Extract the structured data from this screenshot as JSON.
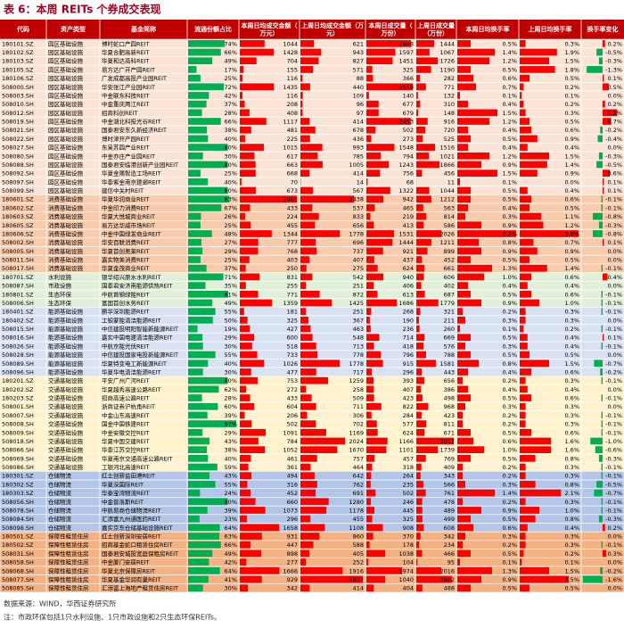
{
  "title": "表 6：本周 REITs 个券成交表现",
  "table": {
    "header_color": "#c00000",
    "bar_color": "#ff0000",
    "share_color": "#00b050",
    "neg_color": "#00b050",
    "header": [
      "代码",
      "资产类型",
      "基金简称",
      "流通份额占比",
      "本周日均成交金额（万元）",
      "上周日均成交金额（万元）",
      "本周日成交量（万份）",
      "上周日成交量（万份）",
      "本周日均换手率",
      "上周日均换手率",
      "换手率变化"
    ],
    "sections": [
      {
        "color": "#fbe4d5",
        "rows": [
          [
            "180101.SZ",
            "园区基础设施",
            "博时蛇口产园REIT",
            "74%",
            "1044",
            "621",
            "2468",
            "1444",
            "0.5%",
            "0.3%",
            "0.2%"
          ],
          [
            "180102.SZ",
            "园区基础设施",
            "华夏合肥高新REIT",
            "66%",
            "1428",
            "943",
            "1597",
            "1067",
            "1.4%",
            "1.9%",
            "-0.5%"
          ],
          [
            "180103.SZ",
            "园区基础设施",
            "华夏和达高科REIT",
            "49%",
            "704",
            "827",
            "1451",
            "1726",
            "1.2%",
            "1.5%",
            "-0.3%"
          ],
          [
            "180105.SZ",
            "园区基础设施",
            "易方达广开产园REIT",
            "17%",
            "155",
            "571",
            "325",
            "1190",
            "0.5%",
            "1.8%",
            "-1.3%"
          ],
          [
            "180106.SZ",
            "园区基础设施",
            "广发成都高投产业园REIT",
            "25%",
            "116",
            "88",
            "366",
            "282",
            "0.6%",
            "0.5%",
            "0.1%"
          ],
          [
            "508000.SH",
            "园区基础设施",
            "华安张江产业园REIT",
            "72%",
            "1435",
            "440",
            "2559",
            "771",
            "0.7%",
            "0.2%",
            "0.5%"
          ],
          [
            "508003.SH",
            "园区基础设施",
            "中金联东科技REIT",
            "42%",
            "116",
            "109",
            "140",
            "132",
            "0.1%",
            "0.1%",
            "0.0%"
          ],
          [
            "508010.SH",
            "园区基础设施",
            "中金重庆两江REIT",
            "37%",
            "208",
            "96",
            "677",
            "310",
            "0.4%",
            "0.2%",
            "0.2%"
          ],
          [
            "508012.SH",
            "园区基础设施",
            "招商科创REIT",
            "28%",
            "408",
            "97",
            "679",
            "148",
            "1.5%",
            "0.3%",
            "1.2%"
          ],
          [
            "508019.SH",
            "园区基础设施",
            "中金湖北科投光谷REIT",
            "66%",
            "1117",
            "414",
            "2453",
            "916",
            "1.2%",
            "0.5%",
            "0.7%"
          ],
          [
            "508021.SH",
            "园区基础设施",
            "国泰君安东久新经济REIT",
            "38%",
            "481",
            "678",
            "502",
            "720",
            "0.4%",
            "0.6%",
            "-0.2%"
          ],
          [
            "508022.SH",
            "园区基础设施",
            "博时津开产园REIT",
            "40%",
            "225",
            "436",
            "273",
            "525",
            "0.5%",
            "0.9%",
            "-0.4%"
          ],
          [
            "508027.SH",
            "园区基础设施",
            "东吴苏园产业REIT",
            "80%",
            "1015",
            "993",
            "1548",
            "1516",
            "0.4%",
            "0.4%",
            "0.0%"
          ],
          [
            "508080.SH",
            "园区基础设施",
            "中金亦庄产业园REIT",
            "30%",
            "617",
            "785",
            "794",
            "1021",
            "1.2%",
            "1.5%",
            "-0.3%"
          ],
          [
            "508088.SH",
            "园区基础设施",
            "国泰君安临港创新产业园REIT",
            "80%",
            "663",
            "1005",
            "1243",
            "1866",
            "0.9%",
            "1.4%",
            "-0.5%"
          ],
          [
            "508092.SH",
            "园区基础设施",
            "华夏金隅智造工场REIT",
            "25%",
            "668",
            "414",
            "756",
            "456",
            "1.5%",
            "0.9%",
            "0.6%"
          ],
          [
            "508097.SH",
            "园区基础设施",
            "华泰紫金南京建邺REIT",
            "40%",
            "70",
            "14",
            "68",
            "11",
            "0.1%",
            "0.0%",
            "0.1%"
          ],
          [
            "508099.SH",
            "园区基础设施",
            "建信中关村REIT",
            "80%",
            "673",
            "567",
            "1322",
            "1044",
            "0.5%",
            "0.4%",
            "0.1%"
          ]
        ]
      },
      {
        "color": "#f8cbad",
        "rows": [
          [
            "180601.SZ",
            "消费基础设施",
            "华夏华润商业REIT",
            "83%",
            "2401",
            "2438",
            "942",
            "1212",
            "0.5%",
            "0.6%",
            "-0.1%"
          ],
          [
            "180602.SZ",
            "消费基础设施",
            "中金印力消费REIT",
            "67%",
            "433",
            "537",
            "465",
            "563",
            "0.4%",
            "0.5%",
            "-0.1%"
          ],
          [
            "180603.SZ",
            "消费基础设施",
            "华夏大悦城商业REIT",
            "26%",
            "224",
            "833",
            "219",
            "814",
            "0.3%",
            "1.1%",
            "-0.8%"
          ],
          [
            "180605.SZ",
            "消费基础设施",
            "易方达华威市场REIT",
            "25%",
            "455",
            "656",
            "413",
            "586",
            "0.9%",
            "1.2%",
            "-0.3%"
          ],
          [
            "180606.SZ",
            "消费基础设施",
            "中金中国绿发商业REIT",
            "48%",
            "1344",
            "1778",
            "1531",
            "2026",
            "2.2%",
            "3.0%",
            "-0.8%"
          ],
          [
            "508002.SH",
            "消费基础设施",
            "华安百联消费REIT",
            "27%",
            "777",
            "696",
            "1444",
            "1211",
            "0.8%",
            "0.7%",
            "0.1%"
          ],
          [
            "508005.SH",
            "消费基础设施",
            "华夏首创奥莱REIT",
            "29%",
            "768",
            "737",
            "921",
            "899",
            "0.9%",
            "0.9%",
            "0.0%"
          ],
          [
            "508011.SH",
            "消费基础设施",
            "嘉实物美消费REIT",
            "25%",
            "403",
            "407",
            "437",
            "452",
            "0.5%",
            "0.5%",
            "0.0%"
          ],
          [
            "508017.SH",
            "消费基础设施",
            "华夏金茂商业REIT",
            "37%",
            "250",
            "275",
            "624",
            "661",
            "1.3%",
            "1.4%",
            "-0.1%"
          ]
        ]
      },
      {
        "color": "#e2efd9",
        "rows": [
          [
            "180701.SZ",
            "水利设施",
            "银华绍兴原水水利REIT",
            "71%",
            "831",
            "542",
            "940",
            "606",
            "1.0%",
            "0.6%",
            "0.4%"
          ],
          [
            "508087.SH",
            "市政设施",
            "国泰君安济南能源供热REIT",
            "35%",
            "255",
            "251",
            "406",
            "402",
            "0.4%",
            "0.4%",
            "0.0%"
          ],
          [
            "180801.SZ",
            "生态环保",
            "中航首钢绿能REIT",
            "81%",
            "771",
            "872",
            "613",
            "687",
            "0.5%",
            "0.6%",
            "-0.1%"
          ],
          [
            "508006.SH",
            "生态环保",
            "富国首创水务REIT",
            "49%",
            "1359",
            "1425",
            "1686",
            "1779",
            "0.9%",
            "1.0%",
            "-0.1%"
          ]
        ]
      },
      {
        "color": "#d9e2f3",
        "rows": [
          [
            "180401.SZ",
            "能源基础设施",
            "鹏华深圳能源REIT",
            "55%",
            "181",
            "251",
            "268",
            "321",
            "0.2%",
            "0.3%",
            "-0.1%"
          ],
          [
            "180402.SZ",
            "能源基础设施",
            "工银蒙能清洁能源REIT",
            "50%",
            "325",
            "367",
            "190",
            "211",
            "0.3%",
            "0.3%",
            "0.0%"
          ],
          [
            "508015.SH",
            "能源基础设施",
            "中信建投明阳智能新能源REIT",
            "19%",
            "427",
            "463",
            "236",
            "260",
            "0.1%",
            "0.2%",
            "-0.1%"
          ],
          [
            "508016.SH",
            "能源基础设施",
            "嘉实中国电建清洁能源REIT",
            "29%",
            "600",
            "548",
            "714",
            "669",
            "0.5%",
            "0.4%",
            "0.1%"
          ],
          [
            "508026.SH",
            "能源基础设施",
            "中航京能光伏REIT",
            "30%",
            "518",
            "713",
            "418",
            "576",
            "0.3%",
            "0.4%",
            "-0.1%"
          ],
          [
            "508028.SH",
            "能源基础设施",
            "中信建投国家电投新能源REIT",
            "55%",
            "733",
            "778",
            "796",
            "788",
            "0.5%",
            "0.5%",
            "0.0%"
          ],
          [
            "508089.SH",
            "能源基础设施",
            "华夏特变电工新能源REIT",
            "40%",
            "1026",
            "1778",
            "915",
            "1581",
            "0.8%",
            "1.5%",
            "-0.7%"
          ],
          [
            "508096.SH",
            "能源基础设施",
            "华夏华电清洁能源REIT",
            "30%",
            "477",
            "717",
            "296",
            "443",
            "0.4%",
            "0.6%",
            "-0.2%"
          ]
        ]
      },
      {
        "color": "#fff2cc",
        "rows": [
          [
            "180201.SZ",
            "交通基础设施",
            "平安广州广河REIT",
            "80%",
            "753",
            "1259",
            "393",
            "656",
            "0.2%",
            "0.3%",
            "-0.1%"
          ],
          [
            "180202.SZ",
            "交通基础设施",
            "华夏越秀高速公路REIT",
            "62%",
            "272",
            "258",
            "407",
            "386",
            "0.4%",
            "0.4%",
            "0.0%"
          ],
          [
            "180203.SZ",
            "交通基础设施",
            "招商高速公路REIT",
            "28%",
            "433",
            "509",
            "423",
            "498",
            "0.5%",
            "0.6%",
            "-0.1%"
          ],
          [
            "508001.SH",
            "交通基础设施",
            "浙商证券沪杭甬REIT",
            "60%",
            "604",
            "711",
            "822",
            "968",
            "0.3%",
            "0.3%",
            "0.0%"
          ],
          [
            "508007.SH",
            "交通基础设施",
            "中金山东高速REIT",
            "39%",
            "206",
            "306",
            "284",
            "423",
            "0.2%",
            "0.3%",
            "-0.1%"
          ],
          [
            "508008.SH",
            "交通基础设施",
            "国金中国铁建REIT",
            "97%",
            "502",
            "702",
            "577",
            "811",
            "0.2%",
            "0.3%",
            "-0.1%"
          ],
          [
            "508009.SH",
            "交通基础设施",
            "中金安徽交控REIT",
            "29%",
            "1091",
            "1169",
            "624",
            "671",
            "0.5%",
            "0.6%",
            "-0.1%"
          ],
          [
            "508018.SH",
            "交通基础设施",
            "华夏中国交建REIT",
            "43%",
            "784",
            "2024",
            "1166",
            "3017",
            "0.6%",
            "1.6%",
            "-1.0%"
          ],
          [
            "508066.SH",
            "交通基础设施",
            "华泰江苏交控REIT",
            "38%",
            "1052",
            "1670",
            "1101",
            "1739",
            "1.0%",
            "1.6%",
            "-0.6%"
          ],
          [
            "508069.SH",
            "交通基础设施",
            "华夏南京交通高速公路REIT",
            "40%",
            "461",
            "757",
            "457",
            "769",
            "0.5%",
            "0.8%",
            "-0.3%"
          ],
          [
            "508086.SH",
            "交通基础设施",
            "工银河北高速REIT",
            "59%",
            "361",
            "464",
            "318",
            "409",
            "0.2%",
            "0.3%",
            "-0.1%"
          ]
        ]
      },
      {
        "color": "#b4c6e7",
        "rows": [
          [
            "180301.SZ",
            "仓储物流",
            "红土创新盐田港REIT",
            "43%",
            "494",
            "642",
            "264",
            "343",
            "0.2%",
            "0.3%",
            "-0.1%"
          ],
          [
            "180302.SZ",
            "仓储物流",
            "华夏深国际REIT",
            "55%",
            "316",
            "762",
            "235",
            "566",
            "0.3%",
            "0.8%",
            "-0.5%"
          ],
          [
            "180303.SZ",
            "仓储物流",
            "华泰宝湾物流REIT",
            "24%",
            "452",
            "691",
            "502",
            "761",
            "1.4%",
            "2.1%",
            "-0.7%"
          ],
          [
            "508056.SH",
            "仓储物流",
            "中金普洛斯REIT",
            "80%",
            "660",
            "1280",
            "246",
            "478",
            "0.2%",
            "0.3%",
            "-0.1%"
          ],
          [
            "508078.SH",
            "仓储物流",
            "中航易商仓储物流REIT",
            "39%",
            "1073",
            "1178",
            "445",
            "489",
            "0.9%",
            "1.0%",
            "-0.1%"
          ],
          [
            "508084.SH",
            "仓储物流",
            "汇添富九州通医药REIT",
            "23%",
            "296",
            "455",
            "325",
            "499",
            "0.5%",
            "0.8%",
            "-0.3%"
          ],
          [
            "508098.SH",
            "仓储物流",
            "嘉实京东仓储基础设施REIT",
            "64%",
            "1658",
            "1108",
            "908",
            "608",
            "0.6%",
            "0.4%",
            "0.2%"
          ]
        ]
      },
      {
        "color": "#f4b183",
        "rows": [
          [
            "180501.SZ",
            "保障性租赁住房",
            "红土创新深圳安居REIT",
            "63%",
            "931",
            "860",
            "370",
            "342",
            "0.3%",
            "0.3%",
            "0.0%"
          ],
          [
            "180502.SZ",
            "保障性租赁住房",
            "招商基金蛇口租赁住房REIT",
            "66%",
            "447",
            "588",
            "178",
            "234",
            "0.2%",
            "0.3%",
            "-0.1%"
          ],
          [
            "508031.SH",
            "保障性租赁住房",
            "国泰君安城投宽庭保租房REIT",
            "49%",
            "898",
            "405",
            "1038",
            "466",
            "0.5%",
            "0.2%",
            "0.3%"
          ],
          [
            "508058.SH",
            "保障性租赁住房",
            "中金厦门安居REIT",
            "42%",
            "277",
            "252",
            "104",
            "95",
            "0.1%",
            "0.1%",
            "0.0%"
          ],
          [
            "508068.SH",
            "保障性租赁住房",
            "华夏北京保障房REIT",
            "64%",
            "1666",
            "1916",
            "1974",
            "2016",
            "1.3%",
            "1.5%",
            "-0.2%"
          ],
          [
            "508077.SH",
            "保障性租赁住房",
            "华夏基金华润有巢REIT",
            "41%",
            "929",
            "2827",
            "1040",
            "2862",
            "0.9%",
            "2.5%",
            "-1.6%"
          ],
          [
            "508085.SH",
            "保障性租赁住房",
            "汇添富上海地产租赁住房REIT",
            "30%",
            "342",
            "414",
            "404",
            "488",
            "0.5%",
            "0.5%",
            "0.0%"
          ]
        ]
      }
    ]
  },
  "footer": [
    "数据来源：WIND，华西证券研究所",
    "注：市政环保包括1只水利设施、1只市政设施和2只生态环保REITs。"
  ]
}
